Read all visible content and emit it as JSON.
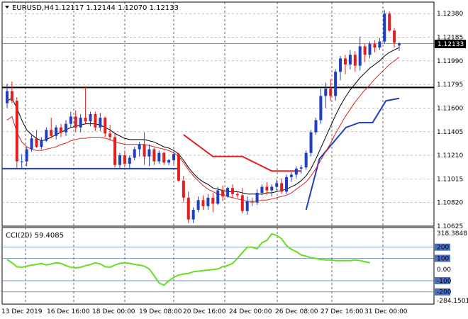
{
  "header": {
    "symbol_timeframe": "EURUSD,H4",
    "ohlc": "1.12117 1.12144 1.12070 1.12133"
  },
  "indicator": {
    "label": "CCI(20) 59.4085",
    "max_label": "318.3848",
    "min_label": "-284.1501",
    "levels": [
      {
        "label": "200",
        "value": 200,
        "color": "#4a6fc1"
      },
      {
        "label": "100",
        "value": 100,
        "color": "#4a6fc1"
      },
      {
        "label": "0.00",
        "value": 0,
        "color": null
      },
      {
        "label": "-100",
        "value": -100,
        "color": "#4a6fc1"
      },
      {
        "label": "-200",
        "value": -200,
        "color": "#4a6fc1"
      }
    ]
  },
  "price_labels": [
    "1.12380",
    "1.12185",
    "1.11990",
    "1.11795",
    "1.11600",
    "1.11405",
    "1.11210",
    "1.11015",
    "1.10820",
    "1.10625"
  ],
  "current_price": {
    "label": "1.12133",
    "value": 1.12133
  },
  "date_labels": [
    "13 Dec 2019",
    "16 Dec 16:00",
    "18 Dec 00:00",
    "19 Dec 08:00",
    "20 Dec 16:00",
    "24 Dec 00:00",
    "26 Dec 08:00",
    "27 Dec 16:00",
    "31 Dec 00:00"
  ],
  "colors": {
    "bull": "#1f3fbf",
    "bear": "#e02020",
    "ma_slow": "#000000",
    "ma_fast": "#e02020",
    "cci": "#66dd22",
    "support": "#1f3fbf",
    "resistance": "#000000"
  },
  "chart_data": {
    "type": "candlestick",
    "symbol": "EURUSD",
    "timeframe": "H4",
    "ylim": [
      1.10625,
      1.12475
    ],
    "horizontal_lines": [
      {
        "value": 1.1177,
        "color": "#000000"
      },
      {
        "value": 1.111,
        "color": "#1f3fbf"
      }
    ],
    "candles": [
      [
        1.1164,
        1.118,
        1.116,
        1.1174
      ],
      [
        1.1174,
        1.1182,
        1.1164,
        1.1166
      ],
      [
        1.1166,
        1.1169,
        1.111,
        1.1116
      ],
      [
        1.1116,
        1.1122,
        1.111,
        1.1116
      ],
      [
        1.1116,
        1.1128,
        1.1112,
        1.1126
      ],
      [
        1.1126,
        1.1138,
        1.1124,
        1.1135
      ],
      [
        1.1135,
        1.1142,
        1.1127,
        1.1128
      ],
      [
        1.1128,
        1.1136,
        1.1126,
        1.1133
      ],
      [
        1.1133,
        1.1144,
        1.1132,
        1.1142
      ],
      [
        1.1142,
        1.1152,
        1.1135,
        1.1137
      ],
      [
        1.1137,
        1.1146,
        1.1134,
        1.1144
      ],
      [
        1.1144,
        1.1147,
        1.1136,
        1.114
      ],
      [
        1.114,
        1.115,
        1.1137,
        1.1147
      ],
      [
        1.1147,
        1.1157,
        1.1144,
        1.1153
      ],
      [
        1.1153,
        1.1158,
        1.114,
        1.1144
      ],
      [
        1.1144,
        1.1155,
        1.114,
        1.1152
      ],
      [
        1.1152,
        1.1178,
        1.1147,
        1.1149
      ],
      [
        1.1149,
        1.1157,
        1.1145,
        1.1155
      ],
      [
        1.1155,
        1.1157,
        1.1141,
        1.1144
      ],
      [
        1.1144,
        1.1156,
        1.1141,
        1.1152
      ],
      [
        1.1152,
        1.1153,
        1.1136,
        1.1139
      ],
      [
        1.1139,
        1.1146,
        1.1133,
        1.1136
      ],
      [
        1.1136,
        1.1139,
        1.1111,
        1.1113
      ],
      [
        1.1113,
        1.1123,
        1.111,
        1.1121
      ],
      [
        1.1121,
        1.1125,
        1.1111,
        1.1114
      ],
      [
        1.1114,
        1.1121,
        1.111,
        1.1119
      ],
      [
        1.1119,
        1.1128,
        1.1117,
        1.1126
      ],
      [
        1.1126,
        1.1132,
        1.112,
        1.113
      ],
      [
        1.113,
        1.114,
        1.1113,
        1.112
      ],
      [
        1.112,
        1.113,
        1.1112,
        1.1126
      ],
      [
        1.1126,
        1.1127,
        1.1113,
        1.1116
      ],
      [
        1.1116,
        1.1125,
        1.1114,
        1.1123
      ],
      [
        1.1123,
        1.1124,
        1.1113,
        1.1115
      ],
      [
        1.1115,
        1.1118,
        1.1113,
        1.1117
      ],
      [
        1.1117,
        1.1124,
        1.1114,
        1.1122
      ],
      [
        1.1122,
        1.1123,
        1.1099,
        1.11
      ],
      [
        1.11,
        1.1104,
        1.1082,
        1.1086
      ],
      [
        1.1086,
        1.1091,
        1.1065,
        1.1068
      ],
      [
        1.1068,
        1.1078,
        1.1065,
        1.1076
      ],
      [
        1.1076,
        1.1087,
        1.1074,
        1.1084
      ],
      [
        1.1084,
        1.1088,
        1.1076,
        1.1079
      ],
      [
        1.1079,
        1.1089,
        1.1076,
        1.1086
      ],
      [
        1.1086,
        1.109,
        1.1074,
        1.1081
      ],
      [
        1.1081,
        1.1095,
        1.108,
        1.1092
      ],
      [
        1.1092,
        1.1096,
        1.1083,
        1.1087
      ],
      [
        1.1087,
        1.1095,
        1.1086,
        1.1094
      ],
      [
        1.1094,
        1.1097,
        1.1086,
        1.1089
      ],
      [
        1.1089,
        1.1091,
        1.1086,
        1.1088
      ],
      [
        1.1088,
        1.1094,
        1.1073,
        1.1075
      ],
      [
        1.1075,
        1.1087,
        1.1072,
        1.1083
      ],
      [
        1.1083,
        1.1086,
        1.1079,
        1.1082
      ],
      [
        1.1082,
        1.1093,
        1.108,
        1.109
      ],
      [
        1.109,
        1.1097,
        1.1088,
        1.1095
      ],
      [
        1.1095,
        1.1099,
        1.1088,
        1.1092
      ],
      [
        1.1092,
        1.1097,
        1.1087,
        1.1095
      ],
      [
        1.1095,
        1.1101,
        1.1092,
        1.1098
      ],
      [
        1.1098,
        1.1102,
        1.1089,
        1.1091
      ],
      [
        1.1091,
        1.1105,
        1.1089,
        1.1103
      ],
      [
        1.1103,
        1.1107,
        1.1099,
        1.1105
      ],
      [
        1.1105,
        1.1112,
        1.1102,
        1.111
      ],
      [
        1.111,
        1.1113,
        1.1106,
        1.1111
      ],
      [
        1.1111,
        1.1125,
        1.1109,
        1.1123
      ],
      [
        1.1123,
        1.1142,
        1.112,
        1.114
      ],
      [
        1.114,
        1.1152,
        1.1138,
        1.115
      ],
      [
        1.115,
        1.1176,
        1.1147,
        1.117
      ],
      [
        1.117,
        1.1181,
        1.116,
        1.1176
      ],
      [
        1.1176,
        1.1184,
        1.1166,
        1.117
      ],
      [
        1.117,
        1.1192,
        1.1166,
        1.119
      ],
      [
        1.119,
        1.1203,
        1.1183,
        1.1201
      ],
      [
        1.1201,
        1.1204,
        1.1188,
        1.1196
      ],
      [
        1.1196,
        1.1208,
        1.1192,
        1.1204
      ],
      [
        1.1204,
        1.1207,
        1.119,
        1.1195
      ],
      [
        1.1195,
        1.1219,
        1.1191,
        1.1211
      ],
      [
        1.1211,
        1.1213,
        1.1198,
        1.1204
      ],
      [
        1.1204,
        1.1215,
        1.1201,
        1.1213
      ],
      [
        1.1213,
        1.1216,
        1.1206,
        1.121
      ],
      [
        1.121,
        1.1218,
        1.1208,
        1.1215
      ],
      [
        1.1215,
        1.1241,
        1.1213,
        1.1238
      ],
      [
        1.1238,
        1.124,
        1.1223,
        1.1224
      ],
      [
        1.1224,
        1.1226,
        1.121,
        1.1214
      ],
      [
        1.12117,
        1.12144,
        1.1207,
        1.12133
      ]
    ],
    "ma_slow": [
      1.1166,
      1.1168,
      1.116,
      1.115,
      1.1142,
      1.1138,
      1.1135,
      1.1133,
      1.1134,
      1.1136,
      1.1138,
      1.114,
      1.1142,
      1.1144,
      1.1145,
      1.1146,
      1.1147,
      1.1147,
      1.1147,
      1.1146,
      1.1144,
      1.1142,
      1.1139,
      1.1137,
      1.1135,
      1.1134,
      1.1134,
      1.1134,
      1.1134,
      1.1133,
      1.1132,
      1.113,
      1.1128,
      1.1127,
      1.1125,
      1.1122,
      1.1117,
      1.1111,
      1.1106,
      1.1102,
      1.1099,
      1.1097,
      1.1094,
      1.1093,
      1.1092,
      1.1091,
      1.1091,
      1.1091,
      1.109,
      1.1089,
      1.1089,
      1.1089,
      1.1089,
      1.109,
      1.109,
      1.1091,
      1.1092,
      1.1093,
      1.1095,
      1.1097,
      1.11,
      1.1104,
      1.111,
      1.1118,
      1.1127,
      1.1136,
      1.1145,
      1.1154,
      1.1162,
      1.1169,
      1.1175,
      1.118,
      1.1185,
      1.1189,
      1.1193,
      1.1196,
      1.1199,
      1.1203,
      1.1206,
      1.1208,
      1.121
    ],
    "ma_fast": [
      1.115,
      1.1153,
      1.114,
      1.1132,
      1.1128,
      1.1126,
      1.1125,
      1.1125,
      1.1126,
      1.1127,
      1.1128,
      1.113,
      1.1131,
      1.1133,
      1.1134,
      1.1135,
      1.1135,
      1.1136,
      1.1136,
      1.1136,
      1.1135,
      1.1134,
      1.1132,
      1.1131,
      1.113,
      1.113,
      1.113,
      1.113,
      1.113,
      1.1129,
      1.1128,
      1.1127,
      1.1126,
      1.1125,
      1.1123,
      1.112,
      1.1115,
      1.1109,
      1.1104,
      1.11,
      1.1096,
      1.1093,
      1.1091,
      1.1089,
      1.1088,
      1.1087,
      1.1086,
      1.1085,
      1.1084,
      1.1083,
      1.1083,
      1.1083,
      1.1084,
      1.1084,
      1.1085,
      1.1086,
      1.1087,
      1.1088,
      1.109,
      1.1093,
      1.1096,
      1.1099,
      1.1104,
      1.111,
      1.1117,
      1.1124,
      1.1131,
      1.1139,
      1.1146,
      1.1153,
      1.1159,
      1.1165,
      1.117,
      1.1175,
      1.1179,
      1.1184,
      1.1188,
      1.1192,
      1.1196,
      1.1199,
      1.1202
    ],
    "ichimoku_red": [
      [
        1.1138,
        1.112
      ],
      [
        1.112,
        1.112
      ],
      [
        1.112,
        1.1108
      ],
      [
        1.1108,
        1.1108
      ]
    ],
    "ichimoku_blue": [
      [
        1.1076,
        1.1118
      ],
      [
        1.1118,
        1.1131
      ],
      [
        1.1131,
        1.1144
      ],
      [
        1.1144,
        1.1148
      ],
      [
        1.1148,
        1.1148
      ],
      [
        1.1148,
        1.1166
      ],
      [
        1.1166,
        1.1168
      ]
    ],
    "cci": [
      90,
      60,
      25,
      20,
      30,
      40,
      45,
      55,
      40,
      50,
      60,
      55,
      35,
      20,
      15,
      20,
      35,
      45,
      60,
      50,
      25,
      20,
      40,
      55,
      60,
      55,
      45,
      40,
      30,
      5,
      -55,
      -120,
      -140,
      -100,
      -70,
      -50,
      -40,
      -35,
      -20,
      -15,
      -10,
      -5,
      0,
      5,
      25,
      35,
      55,
      100,
      150,
      200,
      200,
      185,
      240,
      260,
      320,
      305,
      275,
      215,
      180,
      160,
      130,
      120,
      105,
      100,
      90,
      85,
      85,
      80,
      80,
      80,
      80,
      85,
      80,
      70,
      59
    ]
  }
}
